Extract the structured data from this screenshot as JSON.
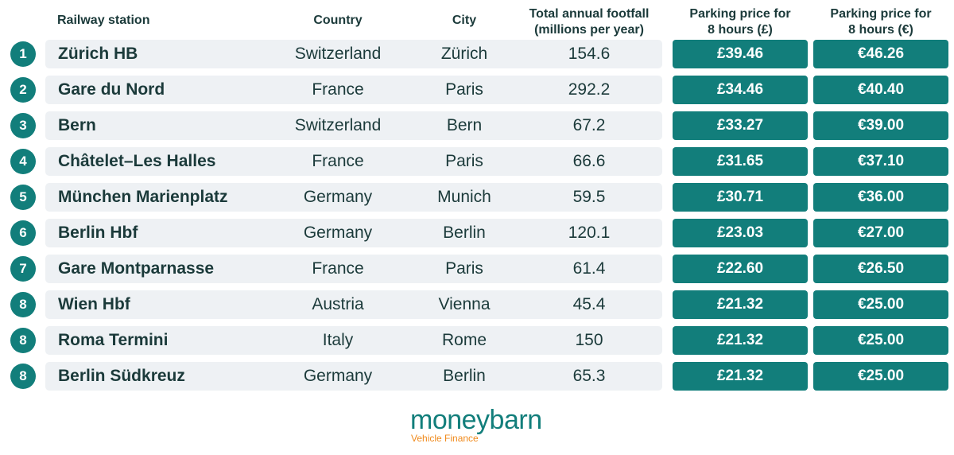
{
  "chart_data": {
    "type": "table",
    "columns": [
      "Railway station",
      "Country",
      "City",
      "Total annual footfall (millions per year)",
      "Parking price for 8 hours (£)",
      "Parking price for 8 hours (€)"
    ],
    "rows": [
      {
        "rank": "1",
        "station": "Zürich HB",
        "country": "Switzerland",
        "city": "Zürich",
        "footfall": "154.6",
        "gbp": "£39.46",
        "eur": "€46.26"
      },
      {
        "rank": "2",
        "station": "Gare du Nord",
        "country": "France",
        "city": "Paris",
        "footfall": "292.2",
        "gbp": "£34.46",
        "eur": "€40.40"
      },
      {
        "rank": "3",
        "station": "Bern",
        "country": "Switzerland",
        "city": "Bern",
        "footfall": "67.2",
        "gbp": "£33.27",
        "eur": "€39.00"
      },
      {
        "rank": "4",
        "station": "Châtelet–Les Halles",
        "country": "France",
        "city": "Paris",
        "footfall": "66.6",
        "gbp": "£31.65",
        "eur": "€37.10"
      },
      {
        "rank": "5",
        "station": "München Marienplatz",
        "country": "Germany",
        "city": "Munich",
        "footfall": "59.5",
        "gbp": "£30.71",
        "eur": "€36.00"
      },
      {
        "rank": "6",
        "station": "Berlin Hbf",
        "country": "Germany",
        "city": "Berlin",
        "footfall": "120.1",
        "gbp": "£23.03",
        "eur": "€27.00"
      },
      {
        "rank": "7",
        "station": "Gare Montparnasse",
        "country": "France",
        "city": "Paris",
        "footfall": "61.4",
        "gbp": "£22.60",
        "eur": "€26.50"
      },
      {
        "rank": "8",
        "station": "Wien Hbf",
        "country": "Austria",
        "city": "Vienna",
        "footfall": "45.4",
        "gbp": "£21.32",
        "eur": "€25.00"
      },
      {
        "rank": "8",
        "station": "Roma Termini",
        "country": "Italy",
        "city": "Rome",
        "footfall": "150",
        "gbp": "£21.32",
        "eur": "€25.00"
      },
      {
        "rank": "8",
        "station": "Berlin Südkreuz",
        "country": "Germany",
        "city": "Berlin",
        "footfall": "65.3",
        "gbp": "£21.32",
        "eur": "€25.00"
      }
    ]
  },
  "headers": {
    "station": "Railway station",
    "country": "Country",
    "city": "City",
    "footfall_line1": "Total annual footfall",
    "footfall_line2": "(millions per year)",
    "gbp_line1": "Parking price for",
    "gbp_line2": "8 hours (£)",
    "eur_line1": "Parking price for",
    "eur_line2": "8 hours (€)"
  },
  "logo": {
    "name": "moneybarn",
    "tagline": "Vehicle Finance"
  },
  "colors": {
    "accent": "#127e7b",
    "row_bg": "#eef1f4",
    "text": "#1b3a3a",
    "logo_orange": "#f08a1c"
  }
}
